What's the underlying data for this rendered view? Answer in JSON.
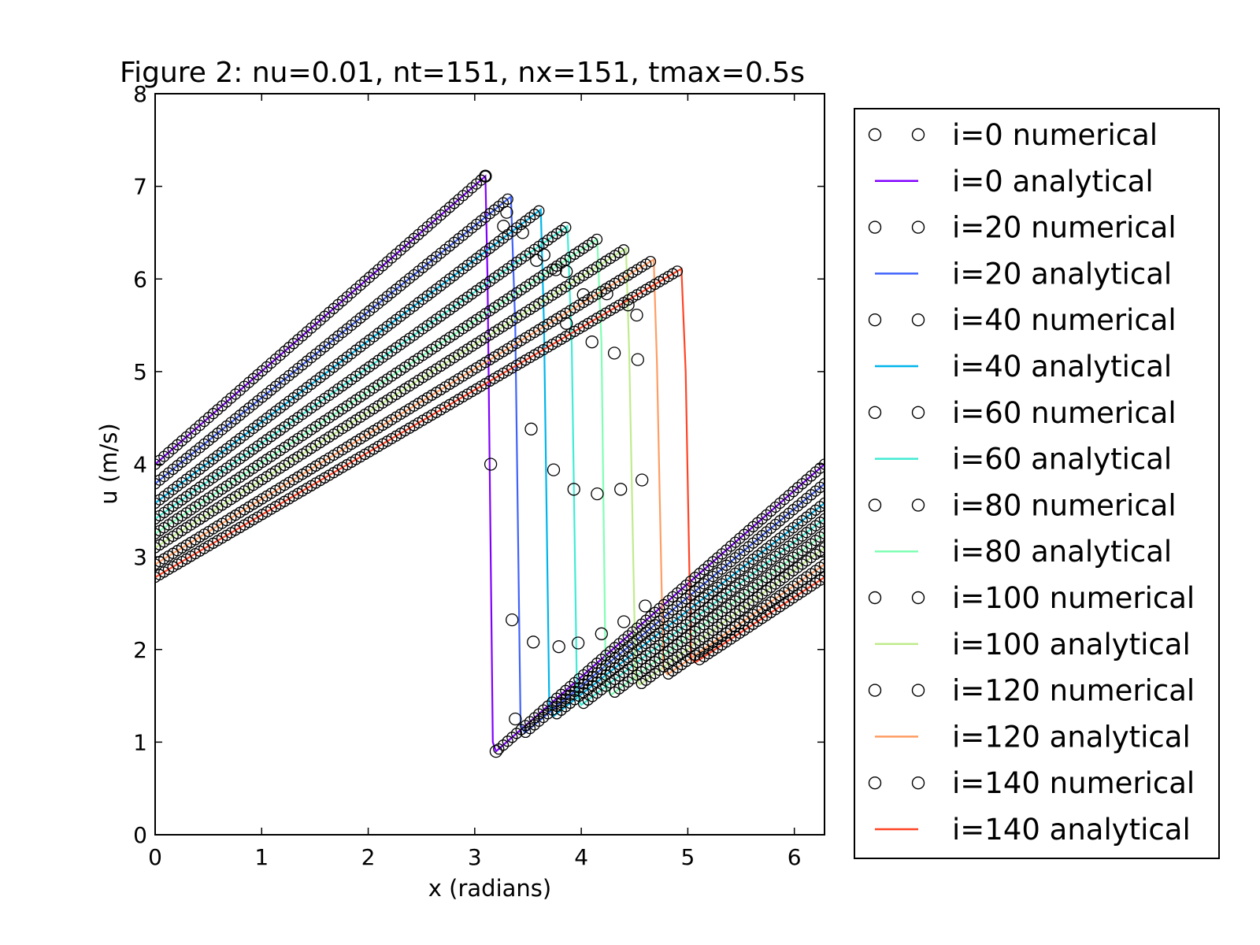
{
  "chart_data": {
    "type": "line",
    "title": "Figure 2: nu=0.01, nt=151, nx=151, tmax=0.5s",
    "xlabel": "x (radians)",
    "ylabel": "u (m/s)",
    "xlim": [
      0,
      6.2832
    ],
    "ylim": [
      0,
      8
    ],
    "xticks": [
      "0",
      "1",
      "2",
      "3",
      "4",
      "5",
      "6"
    ],
    "yticks": [
      "0",
      "1",
      "2",
      "3",
      "4",
      "5",
      "6",
      "7",
      "8"
    ],
    "grid": false,
    "legend_position": "outside-right",
    "marker_color": "#000000",
    "series": [
      {
        "name": "i=0 numerical",
        "kind": "numerical",
        "step": 0
      },
      {
        "name": "i=0 analytical",
        "kind": "analytical",
        "step": 0,
        "color": "#8000ff",
        "x": [
          0,
          3.1,
          3.12,
          3.17,
          3.2,
          6.2832
        ],
        "y": [
          4.0,
          7.11,
          6.0,
          1.0,
          0.9,
          4.0
        ]
      },
      {
        "name": "i=20 numerical",
        "kind": "numerical",
        "step": 20
      },
      {
        "name": "i=20 analytical",
        "kind": "analytical",
        "step": 20,
        "color": "#4062fa",
        "x": [
          0,
          3.34,
          3.38,
          3.43,
          3.47,
          6.2832
        ],
        "y": [
          3.79,
          6.89,
          5.5,
          1.2,
          1.1,
          3.79
        ]
      },
      {
        "name": "i=40 numerical",
        "kind": "numerical",
        "step": 40
      },
      {
        "name": "i=40 analytical",
        "kind": "analytical",
        "step": 40,
        "color": "#00b5eb",
        "x": [
          0,
          3.62,
          3.65,
          3.7,
          3.74,
          6.2832
        ],
        "y": [
          3.58,
          6.75,
          5.5,
          1.4,
          1.28,
          3.58
        ]
      },
      {
        "name": "i=60 numerical",
        "kind": "numerical",
        "step": 60
      },
      {
        "name": "i=60 analytical",
        "kind": "analytical",
        "step": 60,
        "color": "#40ecd4",
        "x": [
          0,
          3.87,
          3.91,
          3.96,
          4.0,
          6.2832
        ],
        "y": [
          3.41,
          6.57,
          5.3,
          1.5,
          1.4,
          3.41
        ]
      },
      {
        "name": "i=80 numerical",
        "kind": "numerical",
        "step": 80
      },
      {
        "name": "i=80 analytical",
        "kind": "analytical",
        "step": 80,
        "color": "#80ffb4",
        "x": [
          0,
          4.15,
          4.19,
          4.23,
          4.28,
          6.2832
        ],
        "y": [
          3.25,
          6.43,
          5.3,
          1.6,
          1.51,
          3.25
        ]
      },
      {
        "name": "i=100 numerical",
        "kind": "numerical",
        "step": 100
      },
      {
        "name": "i=100 analytical",
        "kind": "analytical",
        "step": 100,
        "color": "#c0eb8d",
        "x": [
          0,
          4.42,
          4.45,
          4.51,
          4.55,
          6.2832
        ],
        "y": [
          3.1,
          6.33,
          5.2,
          1.7,
          1.62,
          3.1
        ]
      },
      {
        "name": "i=120 numerical",
        "kind": "numerical",
        "step": 120
      },
      {
        "name": "i=120 analytical",
        "kind": "analytical",
        "step": 120,
        "color": "#ff9d63",
        "x": [
          0,
          4.68,
          4.71,
          4.77,
          4.81,
          6.2832
        ],
        "y": [
          2.92,
          6.21,
          5.1,
          1.8,
          1.73,
          2.92
        ]
      },
      {
        "name": "i=140 numerical",
        "kind": "numerical",
        "step": 140
      },
      {
        "name": "i=140 analytical",
        "kind": "analytical",
        "step": 140,
        "color": "#ff4426",
        "x": [
          0,
          4.94,
          4.98,
          5.03,
          5.07,
          6.2832
        ],
        "y": [
          2.78,
          6.11,
          5.0,
          1.9,
          1.86,
          2.78
        ]
      }
    ],
    "numerical_transition_points": {
      "description": "off-curve circles inside the shock fronts",
      "points": [
        {
          "x": 3.15,
          "y": 4.0
        },
        {
          "x": 3.35,
          "y": 2.32
        },
        {
          "x": 3.38,
          "y": 1.25
        },
        {
          "x": 3.27,
          "y": 6.57
        },
        {
          "x": 3.53,
          "y": 4.38
        },
        {
          "x": 3.55,
          "y": 2.08
        },
        {
          "x": 3.45,
          "y": 6.5
        },
        {
          "x": 3.58,
          "y": 6.2
        },
        {
          "x": 3.74,
          "y": 3.94
        },
        {
          "x": 3.79,
          "y": 2.03
        },
        {
          "x": 3.65,
          "y": 6.26
        },
        {
          "x": 3.76,
          "y": 6.1
        },
        {
          "x": 3.86,
          "y": 5.52
        },
        {
          "x": 3.93,
          "y": 3.73
        },
        {
          "x": 3.97,
          "y": 2.07
        },
        {
          "x": 3.86,
          "y": 6.08
        },
        {
          "x": 4.1,
          "y": 5.32
        },
        {
          "x": 4.15,
          "y": 3.68
        },
        {
          "x": 4.19,
          "y": 2.17
        },
        {
          "x": 4.02,
          "y": 5.83
        },
        {
          "x": 4.31,
          "y": 5.2
        },
        {
          "x": 4.37,
          "y": 3.73
        },
        {
          "x": 4.4,
          "y": 2.3
        },
        {
          "x": 4.44,
          "y": 5.72
        },
        {
          "x": 4.52,
          "y": 5.61
        },
        {
          "x": 4.53,
          "y": 5.13
        },
        {
          "x": 4.57,
          "y": 3.83
        },
        {
          "x": 4.6,
          "y": 2.47
        },
        {
          "x": 3.2,
          "y": 0.9
        },
        {
          "x": 3.1,
          "y": 7.11
        },
        {
          "x": 3.3,
          "y": 6.72
        },
        {
          "x": 4.24,
          "y": 5.84
        }
      ]
    }
  }
}
